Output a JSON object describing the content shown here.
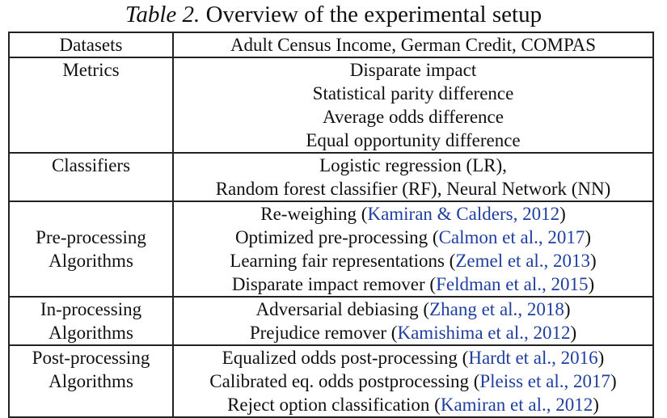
{
  "caption": {
    "label": "Table 2.",
    "title": "Overview of the experimental setup"
  },
  "colors": {
    "citation": "#1f3fa0",
    "text": "#111111",
    "border": "#222222"
  },
  "rows": {
    "datasets": {
      "label": "Datasets",
      "value": "Adult Census Income, German Credit, COMPAS"
    },
    "metrics": {
      "label": "Metrics",
      "items": [
        "Disparate impact",
        "Statistical parity difference",
        "Average odds difference",
        "Equal opportunity difference"
      ]
    },
    "classifiers": {
      "label": "Classifiers",
      "items": [
        "Logistic regression (LR),",
        "Random forest classifier (RF), Neural Network (NN)"
      ]
    },
    "preprocessing": {
      "label_line1": "Pre-processing",
      "label_line2": "Algorithms",
      "items": [
        {
          "text": "Re-weighing (",
          "cite": "Kamiran & Calders",
          "year": "2012",
          "close": ")"
        },
        {
          "text": "Optimized pre-processing (",
          "cite": "Calmon et al.",
          "year": "2017",
          "close": ")"
        },
        {
          "text": "Learning fair representations (",
          "cite": "Zemel et al.",
          "year": "2013",
          "close": ")"
        },
        {
          "text": "Disparate impact remover (",
          "cite": "Feldman et al.",
          "year": "2015",
          "close": ")"
        }
      ]
    },
    "inprocessing": {
      "label_line1": "In-processing",
      "label_line2": "Algorithms",
      "items": [
        {
          "text": "Adversarial debiasing (",
          "cite": "Zhang et al.",
          "year": "2018",
          "close": ")"
        },
        {
          "text": "Prejudice remover (",
          "cite": "Kamishima et al.",
          "year": "2012",
          "close": ")"
        }
      ]
    },
    "postprocessing": {
      "label_line1": "Post-processing",
      "label_line2": "Algorithms",
      "items": [
        {
          "text": "Equalized odds post-processing (",
          "cite": "Hardt et al.",
          "year": "2016",
          "close": ")"
        },
        {
          "text": "Calibrated eq. odds postprocessing (",
          "cite": "Pleiss et al.",
          "year": "2017",
          "close": ")"
        },
        {
          "text": "Reject option classification (",
          "cite": "Kamiran et al.",
          "year": "2012",
          "close": ")"
        }
      ]
    }
  }
}
